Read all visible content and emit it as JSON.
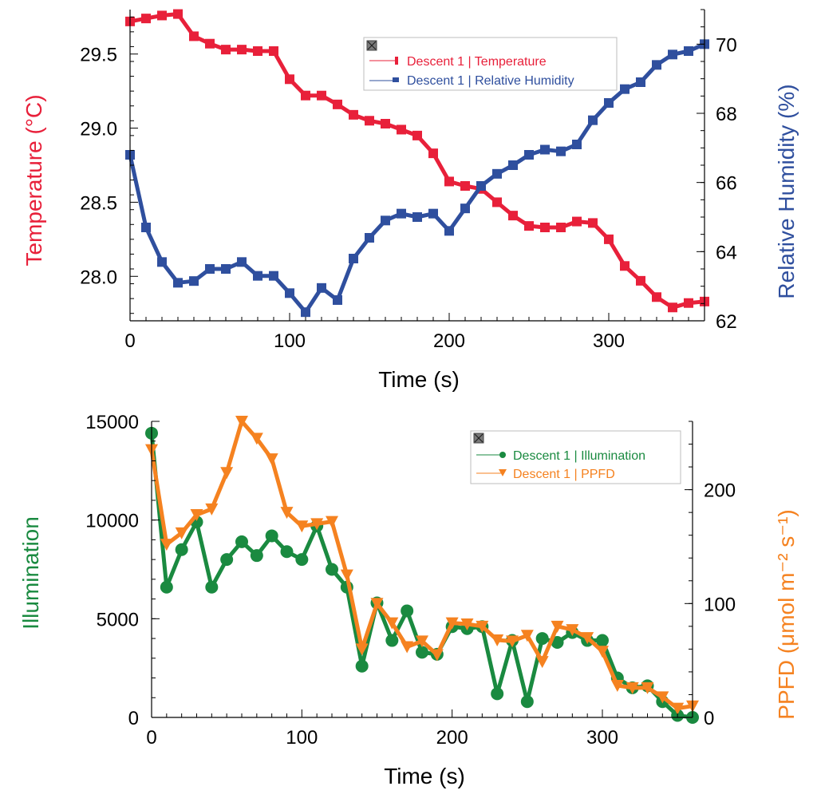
{
  "colors": {
    "temperature": "#e8203a",
    "humidity": "#2f4f9e",
    "illumination": "#1a8a40",
    "ppfd": "#f58220"
  },
  "chart_data": [
    {
      "type": "line",
      "xlabel": "Time (s)",
      "ylabel": "Temperature (°C)",
      "y2label": "Relative Humidity (%)",
      "xlim": [
        0,
        360
      ],
      "ylim": [
        27.7,
        29.8
      ],
      "y2lim": [
        62,
        71
      ],
      "xticks": [
        "0",
        "100",
        "200",
        "300"
      ],
      "yticks": [
        "28.0",
        "28.5",
        "29.0",
        "29.5"
      ],
      "y2ticks": [
        "62",
        "64",
        "66",
        "68",
        "70"
      ],
      "legend": [
        "Descent 1 | Temperature",
        "Descent 1 | Relative Humidity"
      ],
      "x": [
        0,
        10,
        20,
        30,
        40,
        50,
        60,
        70,
        80,
        90,
        100,
        110,
        120,
        130,
        140,
        150,
        160,
        170,
        180,
        190,
        200,
        210,
        220,
        230,
        240,
        250,
        260,
        270,
        280,
        290,
        300,
        310,
        320,
        330,
        340,
        350,
        360
      ],
      "series": [
        {
          "name": "Descent 1 | Temperature",
          "axis": "left",
          "marker": "square",
          "color": "#e8203a",
          "values": [
            29.72,
            29.74,
            29.76,
            29.77,
            29.62,
            29.57,
            29.53,
            29.53,
            29.52,
            29.52,
            29.33,
            29.22,
            29.22,
            29.16,
            29.09,
            29.05,
            29.03,
            28.99,
            28.95,
            28.83,
            28.64,
            28.61,
            28.59,
            28.5,
            28.41,
            28.34,
            28.33,
            28.33,
            28.37,
            28.36,
            28.25,
            28.07,
            27.97,
            27.86,
            27.79,
            27.82,
            27.83
          ]
        },
        {
          "name": "Descent 1 | Relative Humidity",
          "axis": "right",
          "marker": "square",
          "color": "#2f4f9e",
          "values": [
            66.8,
            64.7,
            63.7,
            63.1,
            63.15,
            63.5,
            63.5,
            63.7,
            63.3,
            63.3,
            62.8,
            62.25,
            62.95,
            62.6,
            63.8,
            64.4,
            64.9,
            65.1,
            65.0,
            65.1,
            64.6,
            65.25,
            65.9,
            66.25,
            66.5,
            66.8,
            66.95,
            66.9,
            67.1,
            67.8,
            68.3,
            68.7,
            68.9,
            69.4,
            69.7,
            69.8,
            70.0
          ]
        }
      ]
    },
    {
      "type": "line",
      "xlabel": "Time (s)",
      "ylabel": "Illumination",
      "y2label": "PPFD (μmol m⁻² s⁻¹)",
      "xlim": [
        0,
        360
      ],
      "ylim": [
        0,
        15000
      ],
      "y2lim": [
        0,
        260
      ],
      "xticks": [
        "0",
        "100",
        "200",
        "300"
      ],
      "yticks": [
        "0",
        "5000",
        "10000",
        "15000"
      ],
      "y2ticks": [
        "0",
        "100",
        "200"
      ],
      "legend": [
        "Descent 1 | Illumination",
        "Descent 1 | PPFD"
      ],
      "x": [
        0,
        10,
        20,
        30,
        40,
        50,
        60,
        70,
        80,
        90,
        100,
        110,
        120,
        130,
        140,
        150,
        160,
        170,
        180,
        190,
        200,
        210,
        220,
        230,
        240,
        250,
        260,
        270,
        280,
        290,
        300,
        310,
        320,
        330,
        340,
        350,
        360
      ],
      "series": [
        {
          "name": "Descent 1 | Illumination",
          "axis": "left",
          "marker": "circle",
          "color": "#1a8a40",
          "values": [
            14400,
            6600,
            8500,
            9900,
            6600,
            8000,
            8900,
            8200,
            9200,
            8400,
            8000,
            9700,
            7500,
            6600,
            2600,
            5800,
            3900,
            5400,
            3300,
            3200,
            4600,
            4500,
            4600,
            1200,
            3900,
            800,
            4000,
            3800,
            4300,
            3900,
            3900,
            2000,
            1500,
            1600,
            800,
            100,
            0
          ]
        },
        {
          "name": "Descent 1 | PPFD",
          "axis": "right",
          "marker": "triangle-down",
          "color": "#f58220",
          "values": [
            235,
            152,
            162,
            178,
            183,
            215,
            260,
            245,
            227,
            180,
            168,
            170,
            172,
            125,
            60,
            100,
            83,
            62,
            67,
            55,
            83,
            82,
            80,
            68,
            67,
            72,
            49,
            80,
            77,
            70,
            58,
            28,
            26,
            26,
            18,
            8,
            10
          ]
        }
      ]
    }
  ]
}
